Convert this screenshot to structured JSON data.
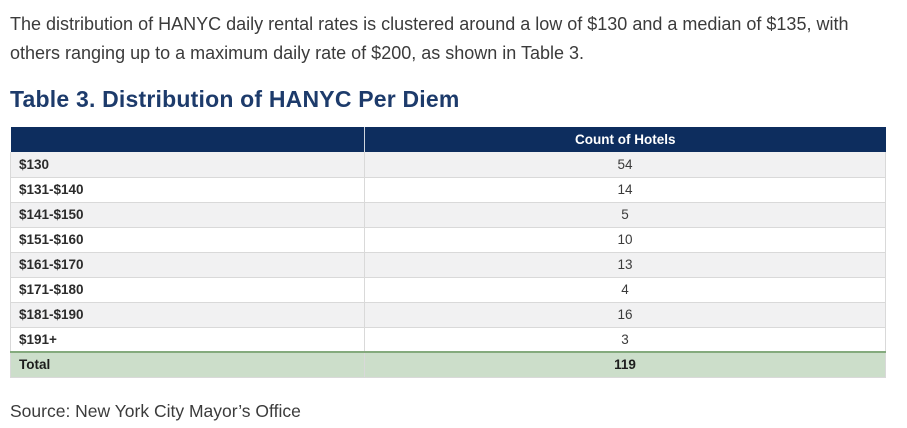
{
  "intro": {
    "text": "The distribution of HANYC daily rental rates is clustered around a low of $130 and a median of $135, with others ranging up to a maximum daily rate of $200, as shown in Table 3."
  },
  "title": {
    "text": "Table 3. Distribution of HANYC Per Diem"
  },
  "table": {
    "header": {
      "label_col": "",
      "count_col": "Count of Hotels"
    },
    "rows": [
      {
        "label": "$130",
        "value": "54"
      },
      {
        "label": "$131-$140",
        "value": "14"
      },
      {
        "label": "$141-$150",
        "value": "5"
      },
      {
        "label": "$151-$160",
        "value": "10"
      },
      {
        "label": "$161-$170",
        "value": "13"
      },
      {
        "label": "$171-$180",
        "value": "4"
      },
      {
        "label": "$181-$190",
        "value": "16"
      },
      {
        "label": "$191+",
        "value": "3"
      }
    ],
    "total": {
      "label": "Total",
      "value": "119"
    }
  },
  "source": {
    "text": "Source: New York City Mayor’s Office"
  },
  "colors": {
    "header_bg": "#0d2d5e",
    "title_text": "#1d3b6b",
    "stripe_row_bg": "#f1f1f2",
    "total_row_bg": "#ccdeca",
    "total_row_border": "#84aa7d",
    "row_border": "#d9d9d9",
    "body_text": "#3b3b3b"
  }
}
